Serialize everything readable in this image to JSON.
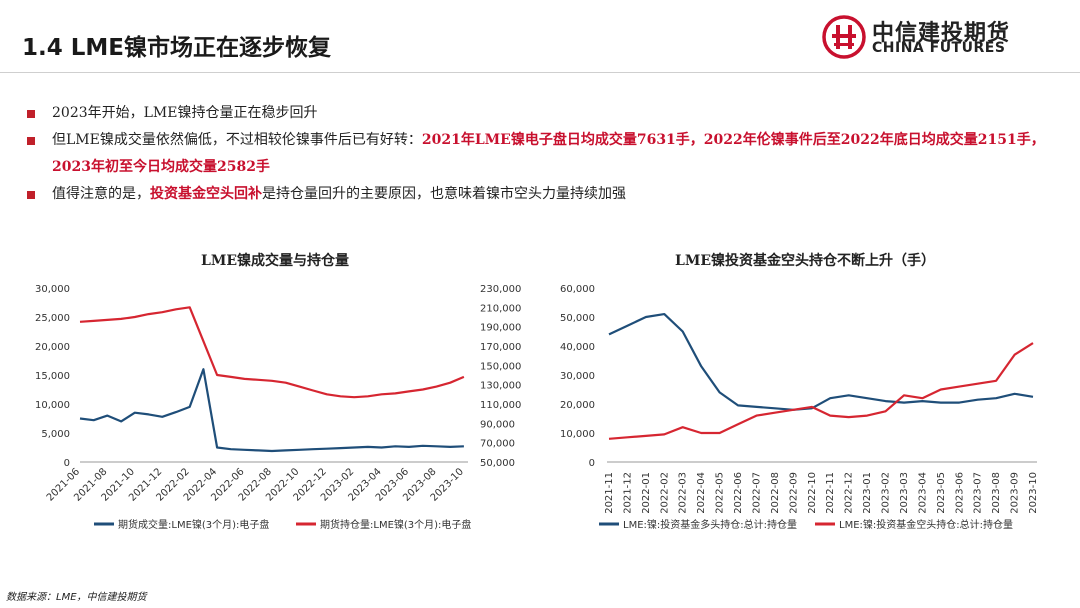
{
  "header": {
    "title": "1.4 LME镍市场正在逐步恢复",
    "logo_cn": "中信建投期货",
    "logo_en": "CHINA FUTURES"
  },
  "bullets": [
    {
      "text": "2023年开始，LME镍持仓量正在稳步回升"
    },
    {
      "lead": "但LME镍成交量依然偏低，不过相较伦镍事件后已有好转：",
      "highlight": "2021年LME镍电子盘日均成交量7631手，2022年伦镍事件后至2022年底日均成交量2151手，2023年初至今日均成交量2582手"
    },
    {
      "lead": "值得注意的是，",
      "highlight": "投资基金空头回补",
      "tail": "是持仓量回升的主要原因，也意味着镍市空头力量持续加强"
    }
  ],
  "colors": {
    "blue": "#1f4e79",
    "red": "#d62631",
    "accent": "#c0202a"
  },
  "chart_data": [
    {
      "type": "line",
      "title": "LME镍成交量与持仓量",
      "x_ticks": [
        "2021-06",
        "2021-08",
        "2021-10",
        "2021-12",
        "2022-02",
        "2022-04",
        "2022-06",
        "2022-08",
        "2022-10",
        "2022-12",
        "2023-02",
        "2023-04",
        "2023-06",
        "2023-08",
        "2023-10"
      ],
      "y_left_ticks": [
        "0",
        "5,000",
        "10,000",
        "15,000",
        "20,000",
        "25,000",
        "30,000"
      ],
      "y_right_ticks": [
        "50,000",
        "70,000",
        "90,000",
        "110,000",
        "130,000",
        "150,000",
        "170,000",
        "190,000",
        "210,000",
        "230,000"
      ],
      "ylim_left": [
        0,
        30000
      ],
      "ylim_right": [
        50000,
        230000
      ],
      "series": [
        {
          "name": "期货成交量:LME镍(3个月):电子盘",
          "axis": "left",
          "color": "#1f4e79",
          "x": [
            "2021-06",
            "2021-07",
            "2021-08",
            "2021-09",
            "2021-10",
            "2021-11",
            "2021-12",
            "2022-01",
            "2022-02",
            "2022-03",
            "2022-04",
            "2022-05",
            "2022-06",
            "2022-07",
            "2022-08",
            "2022-09",
            "2022-10",
            "2022-11",
            "2022-12",
            "2023-01",
            "2023-02",
            "2023-03",
            "2023-04",
            "2023-05",
            "2023-06",
            "2023-07",
            "2023-08",
            "2023-09",
            "2023-10"
          ],
          "values": [
            7500,
            7200,
            8000,
            7000,
            8500,
            8200,
            7800,
            8600,
            9500,
            16000,
            2500,
            2200,
            2100,
            2000,
            1900,
            2000,
            2100,
            2200,
            2300,
            2400,
            2500,
            2600,
            2500,
            2700,
            2600,
            2800,
            2700,
            2600,
            2700
          ]
        },
        {
          "name": "期货持仓量:LME镍(3个月):电子盘",
          "axis": "right",
          "color": "#d62631",
          "x": [
            "2021-06",
            "2021-07",
            "2021-08",
            "2021-09",
            "2021-10",
            "2021-11",
            "2021-12",
            "2022-01",
            "2022-02",
            "2022-03",
            "2022-04",
            "2022-05",
            "2022-06",
            "2022-07",
            "2022-08",
            "2022-09",
            "2022-10",
            "2022-11",
            "2022-12",
            "2023-01",
            "2023-02",
            "2023-03",
            "2023-04",
            "2023-05",
            "2023-06",
            "2023-07",
            "2023-08",
            "2023-09",
            "2023-10"
          ],
          "values": [
            195000,
            196000,
            197000,
            198000,
            200000,
            203000,
            205000,
            208000,
            210000,
            175000,
            140000,
            138000,
            136000,
            135000,
            134000,
            132000,
            128000,
            124000,
            120000,
            118000,
            117000,
            118000,
            120000,
            121000,
            123000,
            125000,
            128000,
            132000,
            138000
          ]
        }
      ]
    },
    {
      "type": "line",
      "title": "LME镍投资基金空头持仓不断上升（手）",
      "x": [
        "2021-11",
        "2021-12",
        "2022-01",
        "2022-02",
        "2022-03",
        "2022-04",
        "2022-05",
        "2022-06",
        "2022-07",
        "2022-08",
        "2022-09",
        "2022-10",
        "2022-11",
        "2022-12",
        "2023-01",
        "2023-02",
        "2023-03",
        "2023-04",
        "2023-05",
        "2023-06",
        "2023-07",
        "2023-08",
        "2023-09",
        "2023-10"
      ],
      "y_ticks": [
        "0",
        "10,000",
        "20,000",
        "30,000",
        "40,000",
        "50,000",
        "60,000"
      ],
      "ylim": [
        0,
        60000
      ],
      "series": [
        {
          "name": "LME:镍:投资基金多头持仓:总计:持仓量",
          "color": "#1f4e79",
          "values": [
            44000,
            47000,
            50000,
            51000,
            45000,
            33000,
            24000,
            19500,
            19000,
            18500,
            18000,
            18500,
            22000,
            23000,
            22000,
            21000,
            20500,
            21000,
            20500,
            20500,
            21500,
            22000,
            23500,
            22500
          ]
        },
        {
          "name": "LME:镍:投资基金空头持仓:总计:持仓量",
          "color": "#d62631",
          "values": [
            8000,
            8500,
            9000,
            9500,
            12000,
            10000,
            10000,
            13000,
            16000,
            17000,
            18000,
            19000,
            16000,
            15500,
            16000,
            17500,
            23000,
            22000,
            25000,
            26000,
            27000,
            28000,
            37000,
            41000
          ]
        }
      ]
    }
  ],
  "source": "数据来源：LME，中信建投期货"
}
